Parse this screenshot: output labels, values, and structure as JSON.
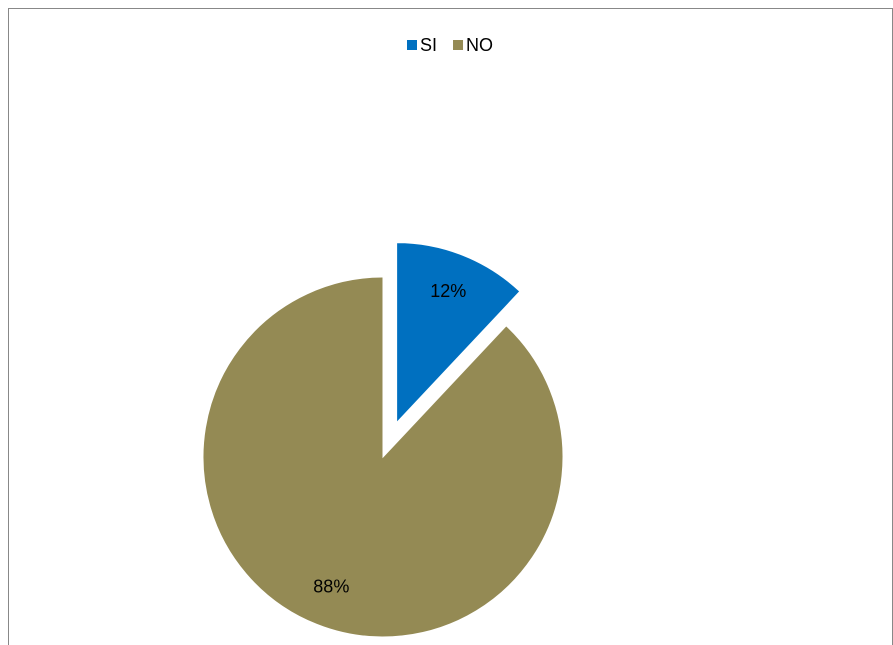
{
  "chart_data": {
    "type": "pie",
    "categories": [
      "SI",
      "NO"
    ],
    "values": [
      12,
      88
    ],
    "value_labels": [
      "12%",
      "88%"
    ],
    "colors": [
      "#0070c0",
      "#948a54"
    ],
    "explode": [
      true,
      false
    ],
    "legend": "top"
  }
}
